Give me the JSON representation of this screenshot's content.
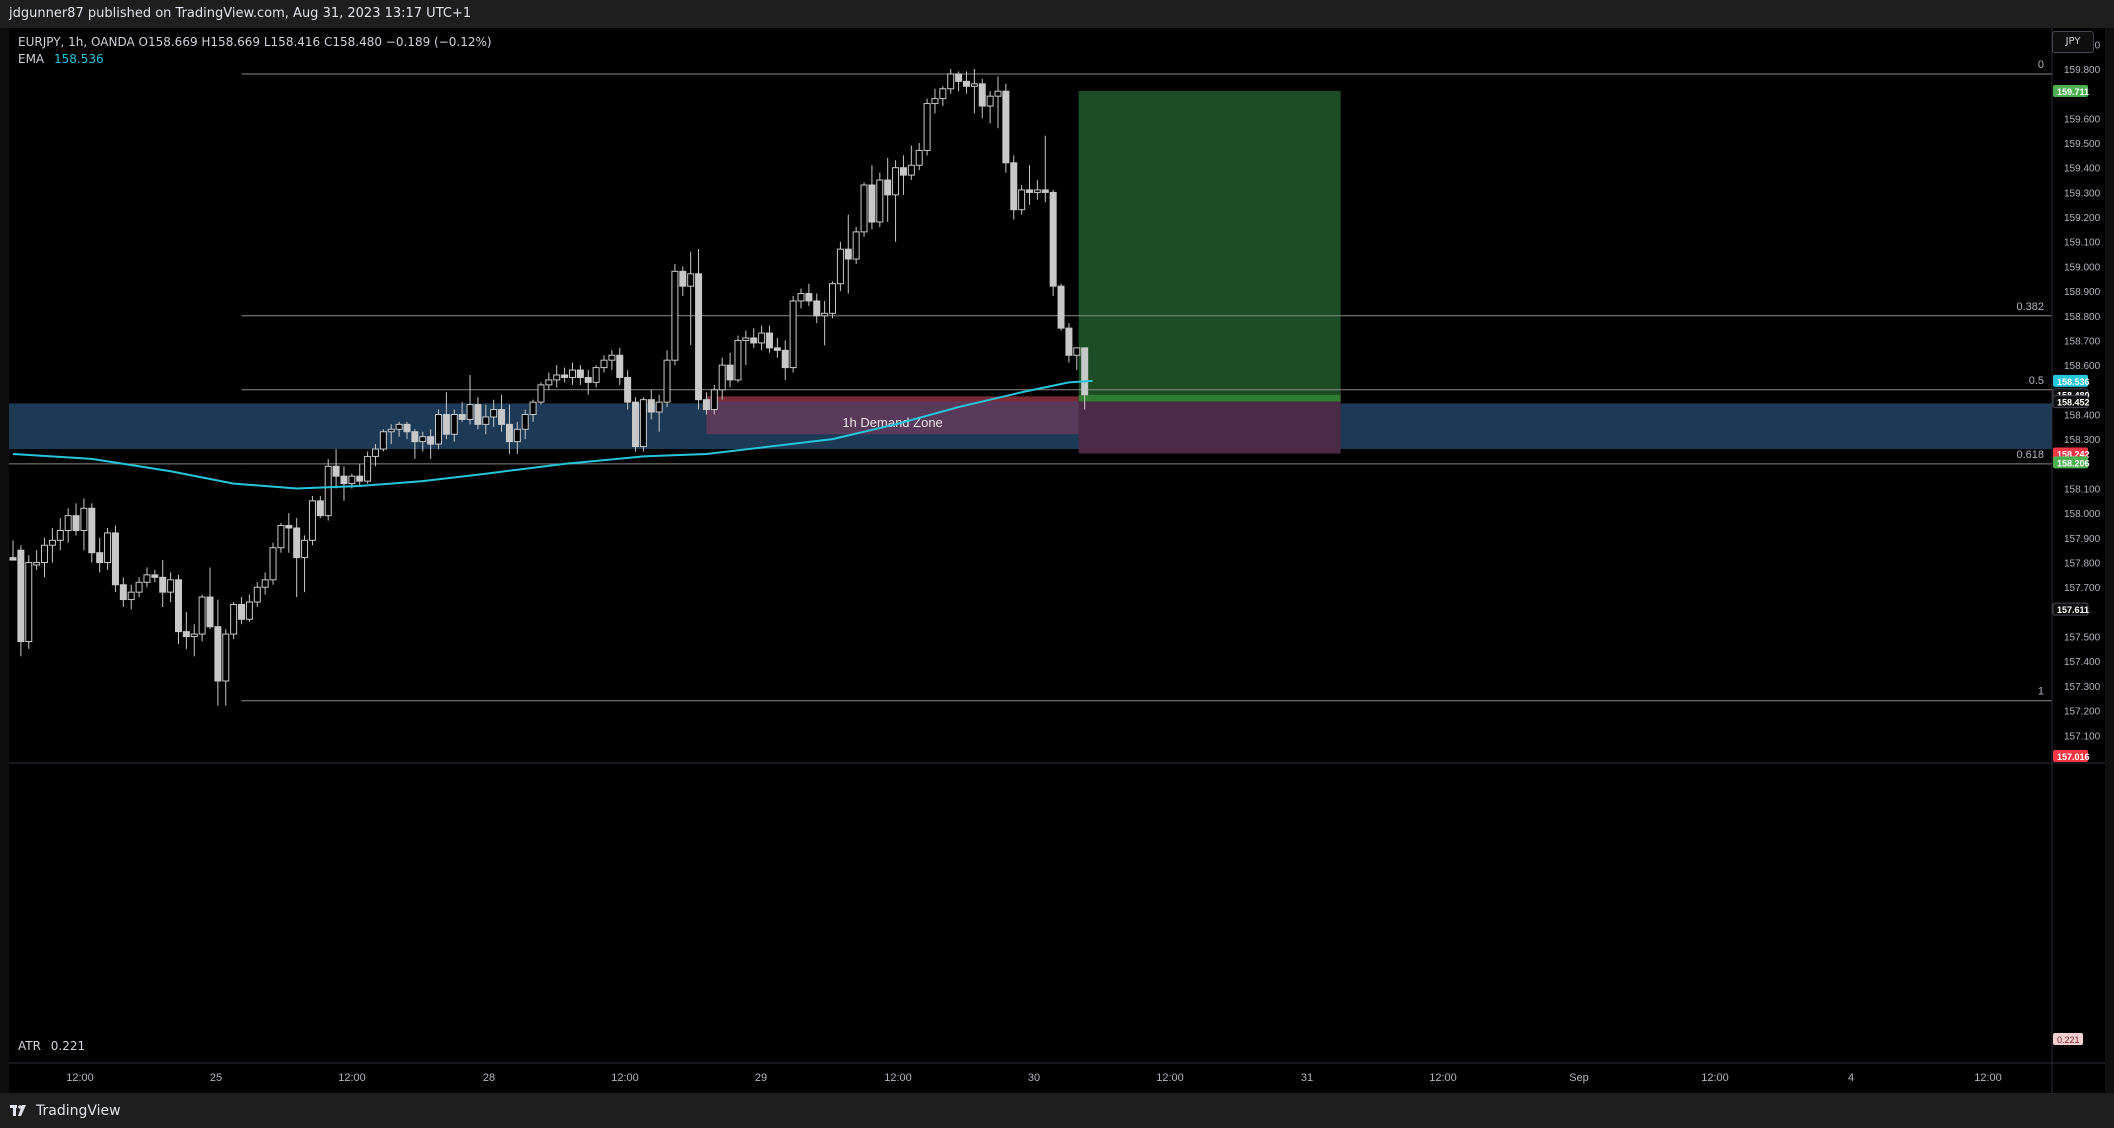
{
  "header": {
    "publisher_text": "jdgunner87 published on TradingView.com, Aug 31, 2023 13:17 UTC+1"
  },
  "legend": {
    "symbol_line": "EURJPY, 1h, OANDA  O158.669  H158.669  L158.416  C158.480  −0.189 (−0.12%)",
    "ema_label": "EMA",
    "ema_value": "158.536",
    "atr_label": "ATR",
    "atr_value": "0.221"
  },
  "currency_button": "JPY",
  "footer": {
    "brand": "TradingView"
  },
  "colors": {
    "background": "#000000",
    "candle": "#c8c8c8",
    "ema": "#26c6da",
    "demand_zone": "#1c3a55",
    "demand_zone_label_box": "#5a3a5a",
    "target_zone": "#1d4d24",
    "stop_zone": "#4b2a45",
    "fib_line": "#8a8a8a",
    "tag_green": "#4caf50",
    "tag_red": "#f23645",
    "tag_cyan": "#26c6da"
  },
  "chart_data": {
    "type": "candlestick",
    "symbol": "EURJPY",
    "timeframe": "1h",
    "source": "OANDA",
    "ylim": [
      157.016,
      159.95
    ],
    "y_ticks": [
      "159.900",
      "159.800",
      "159.600",
      "159.500",
      "159.400",
      "159.300",
      "159.200",
      "159.100",
      "159.000",
      "158.900",
      "158.800",
      "158.700",
      "158.600",
      "158.400",
      "158.300",
      "158.100",
      "158.000",
      "157.900",
      "157.800",
      "157.700",
      "157.500",
      "157.400",
      "157.300",
      "157.200",
      "157.100"
    ],
    "x_tick_labels": [
      "12:00",
      "25",
      "12:00",
      "28",
      "12:00",
      "29",
      "12:00",
      "30",
      "12:00",
      "31",
      "12:00",
      "Sep",
      "12:00",
      "4",
      "12:00"
    ],
    "candles": [
      {
        "o": 157.82,
        "h": 157.89,
        "l": 157.82,
        "c": 157.81
      },
      {
        "o": 157.85,
        "h": 157.87,
        "l": 157.42,
        "c": 157.48
      },
      {
        "o": 157.48,
        "h": 157.83,
        "l": 157.45,
        "c": 157.8
      },
      {
        "o": 157.79,
        "h": 157.85,
        "l": 157.77,
        "c": 157.8
      },
      {
        "o": 157.8,
        "h": 157.9,
        "l": 157.74,
        "c": 157.87
      },
      {
        "o": 157.87,
        "h": 157.94,
        "l": 157.8,
        "c": 157.89
      },
      {
        "o": 157.89,
        "h": 157.98,
        "l": 157.85,
        "c": 157.93
      },
      {
        "o": 157.93,
        "h": 158.02,
        "l": 157.88,
        "c": 157.99
      },
      {
        "o": 157.99,
        "h": 158.04,
        "l": 157.91,
        "c": 157.93
      },
      {
        "o": 157.93,
        "h": 158.06,
        "l": 157.85,
        "c": 158.02
      },
      {
        "o": 158.02,
        "h": 158.04,
        "l": 157.8,
        "c": 157.84
      },
      {
        "o": 157.84,
        "h": 157.9,
        "l": 157.76,
        "c": 157.8
      },
      {
        "o": 157.8,
        "h": 157.94,
        "l": 157.77,
        "c": 157.92
      },
      {
        "o": 157.92,
        "h": 157.95,
        "l": 157.68,
        "c": 157.71
      },
      {
        "o": 157.71,
        "h": 157.74,
        "l": 157.62,
        "c": 157.65
      },
      {
        "o": 157.65,
        "h": 157.71,
        "l": 157.61,
        "c": 157.68
      },
      {
        "o": 157.68,
        "h": 157.74,
        "l": 157.66,
        "c": 157.72
      },
      {
        "o": 157.72,
        "h": 157.78,
        "l": 157.7,
        "c": 157.75
      },
      {
        "o": 157.75,
        "h": 157.77,
        "l": 157.72,
        "c": 157.74
      },
      {
        "o": 157.74,
        "h": 157.81,
        "l": 157.62,
        "c": 157.68
      },
      {
        "o": 157.68,
        "h": 157.76,
        "l": 157.64,
        "c": 157.73
      },
      {
        "o": 157.73,
        "h": 157.75,
        "l": 157.47,
        "c": 157.52
      },
      {
        "o": 157.52,
        "h": 157.6,
        "l": 157.45,
        "c": 157.5
      },
      {
        "o": 157.5,
        "h": 157.55,
        "l": 157.42,
        "c": 157.51
      },
      {
        "o": 157.51,
        "h": 157.67,
        "l": 157.48,
        "c": 157.66
      },
      {
        "o": 157.66,
        "h": 157.78,
        "l": 157.53,
        "c": 157.54
      },
      {
        "o": 157.54,
        "h": 157.65,
        "l": 157.22,
        "c": 157.32
      },
      {
        "o": 157.32,
        "h": 157.53,
        "l": 157.22,
        "c": 157.51
      },
      {
        "o": 157.51,
        "h": 157.64,
        "l": 157.49,
        "c": 157.63
      },
      {
        "o": 157.63,
        "h": 157.66,
        "l": 157.55,
        "c": 157.57
      },
      {
        "o": 157.57,
        "h": 157.67,
        "l": 157.56,
        "c": 157.64
      },
      {
        "o": 157.64,
        "h": 157.72,
        "l": 157.62,
        "c": 157.7
      },
      {
        "o": 157.7,
        "h": 157.76,
        "l": 157.67,
        "c": 157.73
      },
      {
        "o": 157.73,
        "h": 157.88,
        "l": 157.71,
        "c": 157.86
      },
      {
        "o": 157.86,
        "h": 157.96,
        "l": 157.84,
        "c": 157.95
      },
      {
        "o": 157.95,
        "h": 158.0,
        "l": 157.84,
        "c": 157.94
      },
      {
        "o": 157.94,
        "h": 157.98,
        "l": 157.66,
        "c": 157.82
      },
      {
        "o": 157.82,
        "h": 157.91,
        "l": 157.68,
        "c": 157.89
      },
      {
        "o": 157.89,
        "h": 158.07,
        "l": 157.87,
        "c": 158.05
      },
      {
        "o": 158.05,
        "h": 158.07,
        "l": 157.98,
        "c": 157.99
      },
      {
        "o": 157.99,
        "h": 158.22,
        "l": 157.97,
        "c": 158.19
      },
      {
        "o": 158.19,
        "h": 158.26,
        "l": 158.1,
        "c": 158.15
      },
      {
        "o": 158.15,
        "h": 158.19,
        "l": 158.05,
        "c": 158.12
      },
      {
        "o": 158.12,
        "h": 158.16,
        "l": 158.1,
        "c": 158.15
      },
      {
        "o": 158.15,
        "h": 158.2,
        "l": 158.11,
        "c": 158.13
      },
      {
        "o": 158.13,
        "h": 158.25,
        "l": 158.12,
        "c": 158.23
      },
      {
        "o": 158.23,
        "h": 158.28,
        "l": 158.19,
        "c": 158.26
      },
      {
        "o": 158.26,
        "h": 158.34,
        "l": 158.25,
        "c": 158.33
      },
      {
        "o": 158.33,
        "h": 158.36,
        "l": 158.28,
        "c": 158.34
      },
      {
        "o": 158.34,
        "h": 158.37,
        "l": 158.31,
        "c": 158.36
      },
      {
        "o": 158.36,
        "h": 158.37,
        "l": 158.3,
        "c": 158.33
      },
      {
        "o": 158.33,
        "h": 158.34,
        "l": 158.22,
        "c": 158.29
      },
      {
        "o": 158.29,
        "h": 158.33,
        "l": 158.25,
        "c": 158.31
      },
      {
        "o": 158.31,
        "h": 158.34,
        "l": 158.22,
        "c": 158.28
      },
      {
        "o": 158.28,
        "h": 158.42,
        "l": 158.26,
        "c": 158.4
      },
      {
        "o": 158.4,
        "h": 158.49,
        "l": 158.3,
        "c": 158.32
      },
      {
        "o": 158.32,
        "h": 158.42,
        "l": 158.29,
        "c": 158.4
      },
      {
        "o": 158.4,
        "h": 158.45,
        "l": 158.37,
        "c": 158.38
      },
      {
        "o": 158.38,
        "h": 158.56,
        "l": 158.36,
        "c": 158.44
      },
      {
        "o": 158.44,
        "h": 158.47,
        "l": 158.34,
        "c": 158.36
      },
      {
        "o": 158.36,
        "h": 158.44,
        "l": 158.32,
        "c": 158.39
      },
      {
        "o": 158.39,
        "h": 158.46,
        "l": 158.35,
        "c": 158.42
      },
      {
        "o": 158.42,
        "h": 158.48,
        "l": 158.33,
        "c": 158.36
      },
      {
        "o": 158.36,
        "h": 158.44,
        "l": 158.24,
        "c": 158.29
      },
      {
        "o": 158.29,
        "h": 158.37,
        "l": 158.24,
        "c": 158.34
      },
      {
        "o": 158.34,
        "h": 158.42,
        "l": 158.3,
        "c": 158.4
      },
      {
        "o": 158.4,
        "h": 158.46,
        "l": 158.37,
        "c": 158.45
      },
      {
        "o": 158.45,
        "h": 158.53,
        "l": 158.44,
        "c": 158.52
      },
      {
        "o": 158.52,
        "h": 158.57,
        "l": 158.5,
        "c": 158.54
      },
      {
        "o": 158.54,
        "h": 158.6,
        "l": 158.51,
        "c": 158.56
      },
      {
        "o": 158.56,
        "h": 158.59,
        "l": 158.53,
        "c": 158.55
      },
      {
        "o": 158.55,
        "h": 158.61,
        "l": 158.52,
        "c": 158.58
      },
      {
        "o": 158.58,
        "h": 158.6,
        "l": 158.52,
        "c": 158.55
      },
      {
        "o": 158.55,
        "h": 158.58,
        "l": 158.48,
        "c": 158.53
      },
      {
        "o": 158.53,
        "h": 158.6,
        "l": 158.51,
        "c": 158.59
      },
      {
        "o": 158.59,
        "h": 158.64,
        "l": 158.57,
        "c": 158.62
      },
      {
        "o": 158.62,
        "h": 158.66,
        "l": 158.58,
        "c": 158.64
      },
      {
        "o": 158.64,
        "h": 158.67,
        "l": 158.52,
        "c": 158.55
      },
      {
        "o": 158.55,
        "h": 158.58,
        "l": 158.42,
        "c": 158.45
      },
      {
        "o": 158.45,
        "h": 158.47,
        "l": 158.25,
        "c": 158.27
      },
      {
        "o": 158.27,
        "h": 158.47,
        "l": 158.25,
        "c": 158.46
      },
      {
        "o": 158.46,
        "h": 158.5,
        "l": 158.38,
        "c": 158.41
      },
      {
        "o": 158.41,
        "h": 158.48,
        "l": 158.33,
        "c": 158.45
      },
      {
        "o": 158.45,
        "h": 158.66,
        "l": 158.43,
        "c": 158.62
      },
      {
        "o": 158.62,
        "h": 159.01,
        "l": 158.6,
        "c": 158.98
      },
      {
        "o": 158.98,
        "h": 159.0,
        "l": 158.88,
        "c": 158.92
      },
      {
        "o": 158.92,
        "h": 159.06,
        "l": 158.68,
        "c": 158.97
      },
      {
        "o": 158.97,
        "h": 159.07,
        "l": 158.42,
        "c": 158.46
      },
      {
        "o": 158.46,
        "h": 158.49,
        "l": 158.4,
        "c": 158.42
      },
      {
        "o": 158.42,
        "h": 158.52,
        "l": 158.4,
        "c": 158.5
      },
      {
        "o": 158.5,
        "h": 158.63,
        "l": 158.46,
        "c": 158.6
      },
      {
        "o": 158.6,
        "h": 158.65,
        "l": 158.51,
        "c": 158.54
      },
      {
        "o": 158.54,
        "h": 158.72,
        "l": 158.53,
        "c": 158.7
      },
      {
        "o": 158.7,
        "h": 158.74,
        "l": 158.6,
        "c": 158.71
      },
      {
        "o": 158.71,
        "h": 158.75,
        "l": 158.67,
        "c": 158.69
      },
      {
        "o": 158.69,
        "h": 158.76,
        "l": 158.66,
        "c": 158.73
      },
      {
        "o": 158.73,
        "h": 158.76,
        "l": 158.65,
        "c": 158.67
      },
      {
        "o": 158.67,
        "h": 158.71,
        "l": 158.63,
        "c": 158.66
      },
      {
        "o": 158.66,
        "h": 158.7,
        "l": 158.54,
        "c": 158.59
      },
      {
        "o": 158.59,
        "h": 158.88,
        "l": 158.57,
        "c": 158.86
      },
      {
        "o": 158.86,
        "h": 158.91,
        "l": 158.83,
        "c": 158.89
      },
      {
        "o": 158.89,
        "h": 158.93,
        "l": 158.84,
        "c": 158.86
      },
      {
        "o": 158.86,
        "h": 158.89,
        "l": 158.77,
        "c": 158.8
      },
      {
        "o": 158.8,
        "h": 158.86,
        "l": 158.68,
        "c": 158.81
      },
      {
        "o": 158.81,
        "h": 158.94,
        "l": 158.79,
        "c": 158.93
      },
      {
        "o": 158.93,
        "h": 159.1,
        "l": 158.9,
        "c": 159.07
      },
      {
        "o": 159.07,
        "h": 159.21,
        "l": 158.89,
        "c": 159.03
      },
      {
        "o": 159.03,
        "h": 159.16,
        "l": 159.01,
        "c": 159.14
      },
      {
        "o": 159.14,
        "h": 159.34,
        "l": 159.12,
        "c": 159.33
      },
      {
        "o": 159.33,
        "h": 159.41,
        "l": 159.15,
        "c": 159.18
      },
      {
        "o": 159.18,
        "h": 159.38,
        "l": 159.16,
        "c": 159.35
      },
      {
        "o": 159.35,
        "h": 159.44,
        "l": 159.18,
        "c": 159.29
      },
      {
        "o": 159.29,
        "h": 159.43,
        "l": 159.1,
        "c": 159.4
      },
      {
        "o": 159.4,
        "h": 159.45,
        "l": 159.29,
        "c": 159.37
      },
      {
        "o": 159.37,
        "h": 159.49,
        "l": 159.35,
        "c": 159.41
      },
      {
        "o": 159.41,
        "h": 159.5,
        "l": 159.39,
        "c": 159.47
      },
      {
        "o": 159.47,
        "h": 159.68,
        "l": 159.45,
        "c": 159.66
      },
      {
        "o": 159.66,
        "h": 159.72,
        "l": 159.62,
        "c": 159.68
      },
      {
        "o": 159.68,
        "h": 159.73,
        "l": 159.65,
        "c": 159.72
      },
      {
        "o": 159.72,
        "h": 159.8,
        "l": 159.7,
        "c": 159.78
      },
      {
        "o": 159.78,
        "h": 159.79,
        "l": 159.71,
        "c": 159.75
      },
      {
        "o": 159.75,
        "h": 159.79,
        "l": 159.7,
        "c": 159.73
      },
      {
        "o": 159.73,
        "h": 159.8,
        "l": 159.62,
        "c": 159.74
      },
      {
        "o": 159.74,
        "h": 159.76,
        "l": 159.6,
        "c": 159.65
      },
      {
        "o": 159.65,
        "h": 159.71,
        "l": 159.58,
        "c": 159.69
      },
      {
        "o": 159.69,
        "h": 159.77,
        "l": 159.56,
        "c": 159.71
      },
      {
        "o": 159.71,
        "h": 159.74,
        "l": 159.38,
        "c": 159.42
      },
      {
        "o": 159.42,
        "h": 159.45,
        "l": 159.19,
        "c": 159.23
      },
      {
        "o": 159.23,
        "h": 159.33,
        "l": 159.21,
        "c": 159.31
      },
      {
        "o": 159.31,
        "h": 159.41,
        "l": 159.25,
        "c": 159.3
      },
      {
        "o": 159.3,
        "h": 159.35,
        "l": 159.27,
        "c": 159.31
      },
      {
        "o": 159.31,
        "h": 159.53,
        "l": 159.26,
        "c": 159.3
      },
      {
        "o": 159.3,
        "h": 159.31,
        "l": 158.88,
        "c": 158.92
      },
      {
        "o": 158.92,
        "h": 158.93,
        "l": 158.74,
        "c": 158.75
      },
      {
        "o": 158.75,
        "h": 158.77,
        "l": 158.61,
        "c": 158.64
      },
      {
        "o": 158.64,
        "h": 158.67,
        "l": 158.58,
        "c": 158.67
      },
      {
        "o": 158.67,
        "h": 158.67,
        "l": 158.42,
        "c": 158.48
      }
    ],
    "ema": {
      "label": "EMA",
      "value": 158.536,
      "points": [
        [
          0,
          158.24
        ],
        [
          10,
          158.22
        ],
        [
          20,
          158.17
        ],
        [
          28,
          158.12
        ],
        [
          36,
          158.1
        ],
        [
          44,
          158.11
        ],
        [
          52,
          158.13
        ],
        [
          60,
          158.16
        ],
        [
          70,
          158.2
        ],
        [
          80,
          158.23
        ],
        [
          88,
          158.24
        ],
        [
          96,
          158.27
        ],
        [
          104,
          158.3
        ],
        [
          112,
          158.36
        ],
        [
          120,
          158.43
        ],
        [
          128,
          158.49
        ],
        [
          134,
          158.53
        ],
        [
          137,
          158.536
        ]
      ]
    },
    "fibonacci": [
      {
        "level": "0",
        "price": 159.78
      },
      {
        "level": "0.382",
        "price": 158.8
      },
      {
        "level": "0.5",
        "price": 158.5
      },
      {
        "level": "0.618",
        "price": 158.2
      },
      {
        "level": "1",
        "price": 157.24
      }
    ],
    "demand_zone": {
      "label": "1h Demand Zone",
      "top": 158.445,
      "bottom": 158.26
    },
    "position": {
      "entry": 158.452,
      "target": 159.711,
      "stop": 158.242,
      "target_bottom": 158.48
    },
    "price_tags": [
      {
        "value": "159.711",
        "color": "green"
      },
      {
        "value": "158.536",
        "color": "cyan"
      },
      {
        "value": "158.480",
        "color": "dark"
      },
      {
        "value": "158.452",
        "color": "dark"
      },
      {
        "value": "158.242",
        "color": "red"
      },
      {
        "value": "158.206",
        "color": "green"
      },
      {
        "value": "157.611",
        "color": "dark"
      },
      {
        "value": "157.016",
        "color": "red"
      }
    ],
    "atr": {
      "label": "ATR",
      "value": 0.221
    }
  }
}
